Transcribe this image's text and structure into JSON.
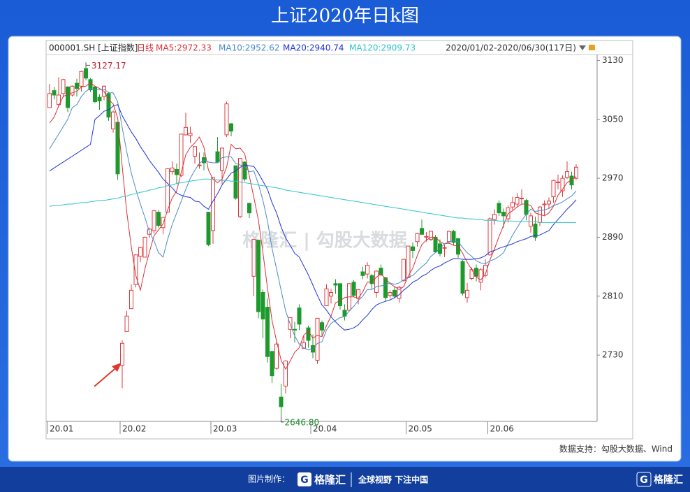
{
  "chart_data": {
    "type": "candlestick",
    "title": "上证2020年日k图",
    "symbol": "000001.SH [上证指数]",
    "period": "日线",
    "date_range": "2020/01/02-2020/06/30(117日)",
    "source": "数据支持：勾股大数据、Wind",
    "high_label": "3127.17",
    "low_label": "2646.80",
    "up_color": "#e03a3e",
    "down_color": "#1c9a2c",
    "ylim": [
      2640,
      3138
    ],
    "yticks": [
      3130,
      3050,
      2970,
      2890,
      2810,
      2730
    ],
    "grid": false,
    "categories": [
      "20.01",
      null,
      null,
      null,
      null,
      null,
      null,
      null,
      null,
      null,
      null,
      null,
      null,
      null,
      null,
      null,
      "20.02",
      null,
      null,
      null,
      null,
      null,
      null,
      null,
      null,
      null,
      null,
      null,
      null,
      null,
      null,
      null,
      null,
      null,
      null,
      null,
      "20.03",
      null,
      null,
      null,
      null,
      null,
      null,
      null,
      null,
      null,
      null,
      null,
      null,
      null,
      null,
      null,
      null,
      null,
      null,
      null,
      null,
      null,
      "20.04",
      null,
      null,
      null,
      null,
      null,
      null,
      null,
      null,
      null,
      null,
      null,
      null,
      null,
      null,
      null,
      null,
      null,
      null,
      null,
      null,
      "20.05",
      null,
      null,
      null,
      null,
      null,
      null,
      null,
      null,
      null,
      null,
      null,
      null,
      null,
      null,
      null,
      null,
      null,
      "20.06",
      null,
      null,
      null,
      null,
      null,
      null,
      null,
      null,
      null,
      null,
      null,
      null,
      null,
      null,
      null,
      null,
      null,
      null,
      null
    ],
    "open": [
      3066,
      3089,
      3070,
      3085,
      3094,
      3083,
      3099,
      3095,
      3119,
      3104,
      3094,
      3080,
      3081,
      3085,
      3037,
      3046,
      2716,
      2762,
      2793,
      2826,
      2864,
      2863,
      2894,
      2899,
      2924,
      2903,
      2924,
      2979,
      2982,
      2974,
      3029,
      3028,
      3000,
      2987,
      2998,
      2924,
      2899,
      3006,
      2981,
      3029,
      3044,
      2987,
      2918,
      2992,
      2936,
      2837,
      2886,
      2815,
      2795,
      2735,
      2712,
      2673,
      2688,
      2765,
      2765,
      2794,
      2739,
      2767,
      2743,
      2723,
      2774,
      2797,
      2810,
      2827,
      2827,
      2791,
      2791,
      2829,
      2807,
      2843,
      2840,
      2838,
      2815,
      2848,
      2835,
      2811,
      2818,
      2807,
      2831,
      2835,
      2877,
      2884,
      2902,
      2890,
      2887,
      2890,
      2881,
      2875,
      2884,
      2898,
      2888,
      2857,
      2808,
      2834,
      2848,
      2829,
      2838,
      2866,
      2914,
      2936,
      2924,
      2915,
      2931,
      2935,
      2943,
      2940,
      2905,
      2908,
      2910,
      2934,
      2935,
      2945,
      2965,
      2953,
      2971,
      2973,
      2970
    ],
    "high": [
      3098,
      3094,
      3107,
      3105,
      3095,
      3096,
      3105,
      3116,
      3127.17,
      3106,
      3095,
      3084,
      3096,
      3087,
      3062,
      3046,
      2750,
      2790,
      2826,
      2867,
      2877,
      2891,
      2903,
      2926,
      2927,
      2917,
      2983,
      2993,
      2990,
      3030,
      3059,
      3040,
      3013,
      3005,
      3005,
      2924,
      2971,
      3026,
      3011,
      3074,
      3045,
      2987,
      2997,
      2993,
      2937,
      2887,
      2886,
      2819,
      2807,
      2736,
      2748,
      2691,
      2723,
      2781,
      2775,
      2799,
      2756,
      2770,
      2758,
      2780,
      2777,
      2826,
      2820,
      2833,
      2827,
      2799,
      2828,
      2832,
      2820,
      2850,
      2856,
      2840,
      2845,
      2853,
      2836,
      2818,
      2823,
      2824,
      2861,
      2878,
      2883,
      2896,
      2914,
      2897,
      2898,
      2893,
      2887,
      2880,
      2899,
      2900,
      2889,
      2859,
      2828,
      2849,
      2853,
      2848,
      2860,
      2917,
      2928,
      2940,
      2929,
      2933,
      2945,
      2950,
      2955,
      2942,
      2923,
      2918,
      2932,
      2940,
      2944,
      2968,
      2975,
      2974,
      2993,
      2979,
      2989
    ],
    "low": [
      3066,
      3077,
      3067,
      3080,
      3060,
      3081,
      3081,
      3088,
      3103,
      3087,
      3072,
      3063,
      3076,
      3048,
      3032,
      2968,
      2685,
      2762,
      2793,
      2822,
      2856,
      2863,
      2889,
      2895,
      2903,
      2894,
      2924,
      2975,
      2962,
      2972,
      3028,
      3018,
      2990,
      2983,
      2981,
      2878,
      2881,
      2991,
      2962,
      3026,
      3027,
      2941,
      2916,
      2966,
      2916,
      2810,
      2780,
      2753,
      2720,
      2692,
      2710,
      2646.8,
      2678,
      2753,
      2747,
      2764,
      2739,
      2740,
      2726,
      2718,
      2756,
      2797,
      2800,
      2813,
      2792,
      2777,
      2789,
      2809,
      2799,
      2833,
      2834,
      2820,
      2808,
      2837,
      2803,
      2807,
      2807,
      2801,
      2830,
      2835,
      2862,
      2877,
      2893,
      2884,
      2885,
      2870,
      2864,
      2863,
      2881,
      2879,
      2862,
      2811,
      2801,
      2832,
      2830,
      2818,
      2835,
      2865,
      2907,
      2919,
      2903,
      2910,
      2926,
      2932,
      2935,
      2913,
      2896,
      2885,
      2905,
      2920,
      2929,
      2937,
      2955,
      2945,
      2969,
      2955,
      2968
    ],
    "close": [
      3085,
      3083,
      3083,
      3104,
      3066,
      3095,
      3092,
      3115,
      3106,
      3090,
      3074,
      3075,
      3095,
      3053,
      3060,
      2976,
      2746,
      2783,
      2818,
      2866,
      2876,
      2890,
      2901,
      2926,
      2906,
      2917,
      2983,
      2984,
      2975,
      3030,
      3039,
      3031,
      3013,
      2988,
      2991,
      2880,
      2971,
      2992,
      3011,
      3071,
      3034,
      2943,
      2997,
      2969,
      2923,
      2887,
      2789,
      2779,
      2728,
      2702,
      2745,
      2660,
      2722,
      2781,
      2764,
      2772,
      2747,
      2750,
      2734,
      2780,
      2764,
      2820,
      2815,
      2825,
      2797,
      2783,
      2827,
      2811,
      2819,
      2838,
      2852,
      2827,
      2844,
      2839,
      2808,
      2815,
      2810,
      2822,
      2860,
      2878,
      2872,
      2895,
      2894,
      2891,
      2898,
      2870,
      2868,
      2876,
      2898,
      2883,
      2867,
      2814,
      2818,
      2846,
      2837,
      2846,
      2852,
      2915,
      2921,
      2923,
      2919,
      2930,
      2937,
      2944,
      2943,
      2921,
      2919,
      2890,
      2931,
      2935,
      2939,
      2967,
      2965,
      2970,
      2979,
      2961,
      2985
    ],
    "series": [
      {
        "name": "MA5:2972.33",
        "color": "#d8323c",
        "values": [
          3045,
          3053,
          3068,
          3081,
          3084,
          3086,
          3088,
          3094,
          3095,
          3100,
          3095,
          3092,
          3088,
          3077,
          3071,
          3052,
          2986,
          2924,
          2877,
          2838,
          2818,
          2847,
          2870,
          2892,
          2900,
          2908,
          2927,
          2943,
          2953,
          2978,
          3002,
          3012,
          3018,
          3026,
          3012,
          2981,
          2969,
          2964,
          2969,
          2985,
          3016,
          3010,
          3011,
          3003,
          2973,
          2944,
          2913,
          2869,
          2821,
          2777,
          2749,
          2723,
          2711,
          2722,
          2734,
          2740,
          2757,
          2763,
          2753,
          2757,
          2755,
          2770,
          2783,
          2801,
          2804,
          2808,
          2809,
          2809,
          2807,
          2816,
          2829,
          2829,
          2836,
          2840,
          2834,
          2827,
          2823,
          2819,
          2823,
          2837,
          2848,
          2865,
          2880,
          2886,
          2890,
          2890,
          2884,
          2881,
          2882,
          2879,
          2878,
          2868,
          2856,
          2846,
          2836,
          2832,
          2840,
          2859,
          2874,
          2891,
          2906,
          2922,
          2926,
          2931,
          2935,
          2935,
          2933,
          2923,
          2921,
          2919,
          2923,
          2932,
          2947,
          2955,
          2964,
          2968,
          2972.33
        ]
      },
      {
        "name": "MA10:2952.62",
        "color": "#4a8ac8",
        "values": [
          3010,
          3020,
          3030,
          3040,
          3050,
          3066,
          3070,
          3081,
          3088,
          3092,
          3090,
          3090,
          3091,
          3086,
          3086,
          3074,
          3039,
          3006,
          2977,
          2955,
          2935,
          2917,
          2897,
          2885,
          2869,
          2863,
          2887,
          2907,
          2923,
          2939,
          2955,
          2970,
          2981,
          2990,
          2995,
          2992,
          2991,
          2991,
          2998,
          2999,
          2999,
          2990,
          2988,
          2986,
          2979,
          2980,
          2962,
          2940,
          2912,
          2875,
          2847,
          2818,
          2790,
          2772,
          2756,
          2745,
          2740,
          2737,
          2738,
          2746,
          2748,
          2764,
          2773,
          2777,
          2781,
          2782,
          2790,
          2796,
          2804,
          2810,
          2819,
          2819,
          2823,
          2824,
          2825,
          2828,
          2826,
          2828,
          2832,
          2836,
          2838,
          2844,
          2850,
          2855,
          2864,
          2869,
          2875,
          2881,
          2884,
          2885,
          2884,
          2876,
          2869,
          2864,
          2858,
          2855,
          2854,
          2858,
          2860,
          2864,
          2869,
          2881,
          2893,
          2903,
          2913,
          2921,
          2928,
          2925,
          2926,
          2927,
          2929,
          2933,
          2935,
          2938,
          2942,
          2946,
          2952.62
        ]
      },
      {
        "name": "MA20:2940.74",
        "color": "#1f33d6",
        "values": [
          2980,
          2984,
          2988,
          2992,
          2996,
          3000,
          3004,
          3008,
          3012,
          3016,
          3050,
          3055,
          3061,
          3063,
          3068,
          3070,
          3055,
          3044,
          3033,
          3024,
          3013,
          3004,
          2994,
          2986,
          2978,
          2969,
          2963,
          2957,
          2950,
          2947,
          2945,
          2944,
          2939,
          2938,
          2932,
          2928,
          2939,
          2949,
          2961,
          2969,
          2977,
          2980,
          2985,
          2988,
          2987,
          2986,
          2977,
          2966,
          2955,
          2937,
          2923,
          2904,
          2889,
          2879,
          2868,
          2863,
          2851,
          2839,
          2825,
          2811,
          2798,
          2791,
          2782,
          2775,
          2769,
          2764,
          2765,
          2767,
          2771,
          2778,
          2784,
          2792,
          2798,
          2801,
          2803,
          2805,
          2808,
          2812,
          2818,
          2823,
          2829,
          2832,
          2837,
          2840,
          2845,
          2849,
          2851,
          2855,
          2858,
          2861,
          2861,
          2860,
          2860,
          2860,
          2861,
          2862,
          2865,
          2870,
          2872,
          2875,
          2877,
          2879,
          2881,
          2884,
          2886,
          2888,
          2891,
          2892,
          2893,
          2896,
          2899,
          2907,
          2914,
          2921,
          2928,
          2934,
          2940.74
        ]
      },
      {
        "name": "MA120:2909.73",
        "color": "#2cc4cc",
        "values": [
          2932,
          2933,
          2933,
          2934,
          2935,
          2935,
          2936,
          2937,
          2937,
          2938,
          2939,
          2940,
          2940,
          2941,
          2942,
          2943,
          2945,
          2946,
          2948,
          2949,
          2951,
          2952,
          2954,
          2955,
          2957,
          2958,
          2960,
          2961,
          2963,
          2964,
          2965,
          2966,
          2967,
          2968,
          2969,
          2969,
          2968,
          2968,
          2967,
          2967,
          2966,
          2966,
          2965,
          2964,
          2963,
          2962,
          2961,
          2960,
          2959,
          2958,
          2957,
          2956,
          2954,
          2953,
          2952,
          2951,
          2950,
          2949,
          2948,
          2947,
          2946,
          2945,
          2944,
          2943,
          2942,
          2941,
          2940,
          2939,
          2938,
          2937,
          2936,
          2935,
          2934,
          2933,
          2932,
          2931,
          2930,
          2929,
          2928,
          2927,
          2926,
          2925,
          2924,
          2923,
          2922,
          2921,
          2920,
          2919,
          2918,
          2917,
          2916,
          2916,
          2915,
          2915,
          2914,
          2914,
          2913,
          2913,
          2913,
          2912,
          2912,
          2912,
          2912,
          2911,
          2911,
          2911,
          2911,
          2911,
          2910,
          2910,
          2910,
          2910,
          2910,
          2910,
          2910,
          2910,
          2909.73
        ]
      }
    ]
  },
  "page": {
    "watermark": "格隆汇 | 勾股大数据",
    "credit": "图片制作：",
    "brand": "格隆汇",
    "slogan": "全球视野 下注中国",
    "corner_brand": "格隆汇",
    "logo_letter": "G"
  }
}
